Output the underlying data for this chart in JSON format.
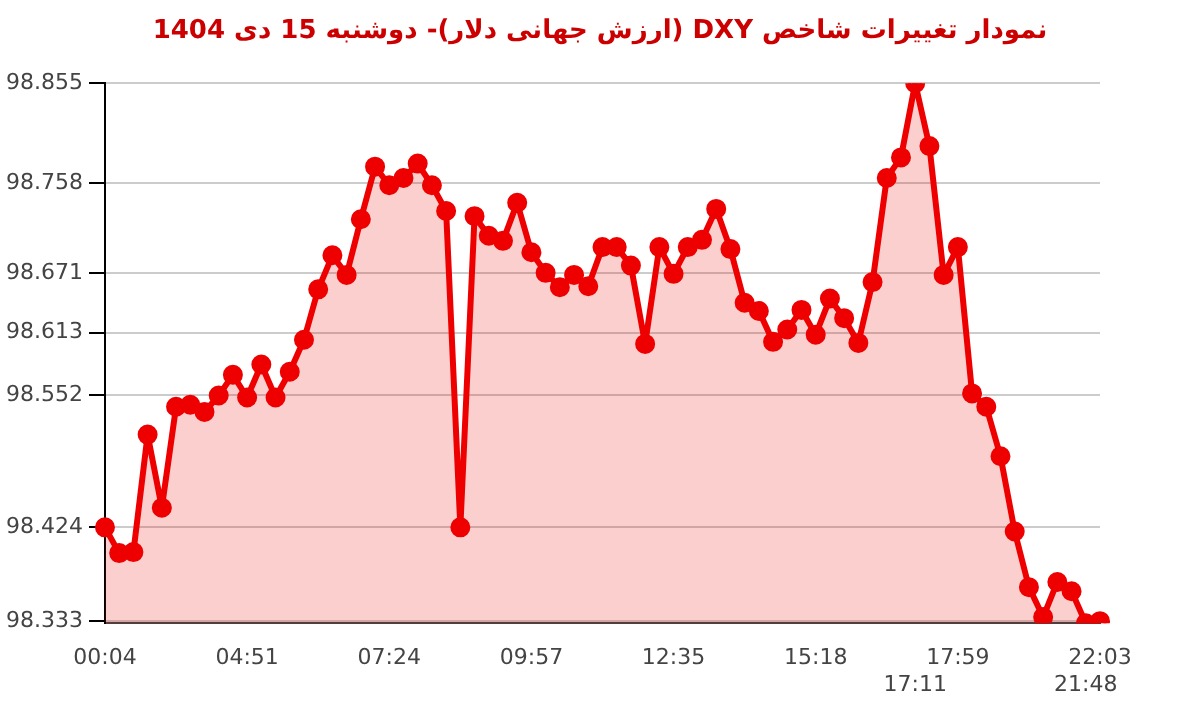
{
  "chart_data": {
    "type": "area",
    "title": "نمودار تغییرات شاخص DXY (ارزش جهانی دلار)-  دوشنبه  15 دی 1404",
    "categories": [
      "00:04",
      null,
      null,
      null,
      null,
      null,
      null,
      null,
      null,
      null,
      "04:51",
      null,
      null,
      null,
      null,
      null,
      null,
      null,
      null,
      null,
      "07:24",
      null,
      null,
      null,
      null,
      null,
      null,
      null,
      null,
      null,
      "09:57",
      null,
      null,
      null,
      null,
      null,
      null,
      null,
      null,
      null,
      "12:35",
      null,
      null,
      null,
      null,
      null,
      null,
      null,
      null,
      null,
      "15:18",
      null,
      null,
      null,
      null,
      null,
      null,
      "17:11",
      null,
      null,
      "17:59",
      null,
      null,
      null,
      null,
      null,
      null,
      null,
      null,
      "21:48",
      "22:03"
    ],
    "series": [
      {
        "color": "#ee0000",
        "values": [
          98.424,
          98.399,
          98.4,
          98.514,
          98.443,
          98.541,
          98.543,
          98.536,
          98.552,
          98.572,
          98.55,
          98.582,
          98.55,
          98.575,
          98.606,
          98.655,
          98.688,
          98.669,
          98.723,
          98.774,
          98.756,
          98.763,
          98.777,
          98.756,
          98.731,
          98.424,
          98.726,
          98.707,
          98.702,
          98.739,
          98.691,
          98.671,
          98.657,
          98.669,
          98.658,
          98.696,
          98.696,
          98.678,
          98.602,
          98.696,
          98.67,
          98.696,
          98.703,
          98.733,
          98.694,
          98.642,
          98.634,
          98.604,
          98.616,
          98.635,
          98.611,
          98.646,
          98.627,
          98.603,
          98.662,
          98.763,
          98.783,
          98.855,
          98.794,
          98.669,
          98.696,
          98.554,
          98.541,
          98.493,
          98.42,
          98.366,
          98.337,
          98.371,
          98.362,
          98.331,
          98.333
        ]
      }
    ],
    "ylim": [
      98.331,
      98.855
    ],
    "yticks": [
      98.333,
      98.424,
      98.552,
      98.613,
      98.671,
      98.758,
      98.855
    ],
    "grid": "y",
    "marker": "circle",
    "legend": false
  }
}
